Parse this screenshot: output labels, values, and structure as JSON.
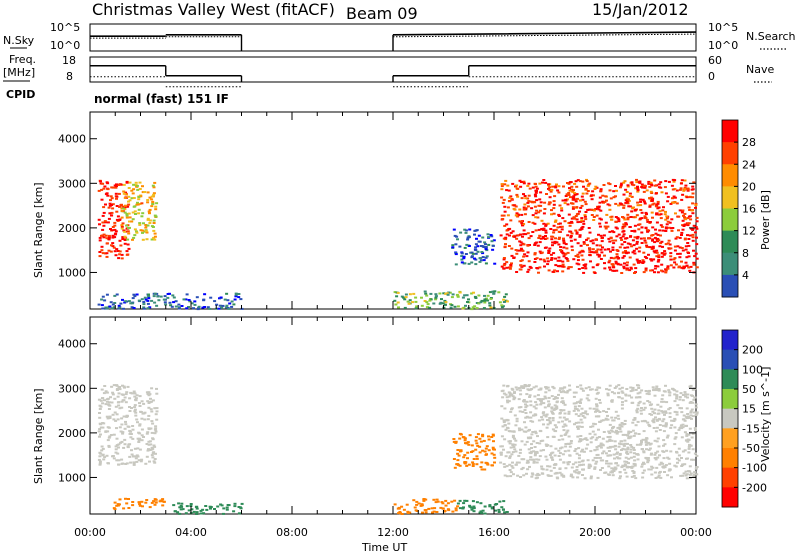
{
  "header": {
    "station": "Christmas Valley West (fitACF)",
    "beam": "Beam 09",
    "date": "15/Jan/2012"
  },
  "left_labels": {
    "nsky": "N.Sky",
    "freq_line1": "Freq.",
    "freq_line2": "[MHz]",
    "cpid": "CPID"
  },
  "right_labels": {
    "nsearch": "N.Search",
    "nave": "Nave"
  },
  "cpid_text": "normal (fast) 151 IF",
  "colors": {
    "power_scale": [
      "#0000ff",
      "#2a4fb5",
      "#3c8e78",
      "#2e8b57",
      "#8ccc3c",
      "#f0c020",
      "#ff8c00",
      "#ff4000",
      "#ff0000"
    ],
    "velocity_scale": [
      "#2222cc",
      "#2a4fb5",
      "#2e8b57",
      "#8ccc3c",
      "#c8c8c0",
      "#ffa020",
      "#ff8000",
      "#ff4000",
      "#ff0000"
    ],
    "ground_scatter": "#c8c8c0"
  },
  "chart_data": [
    {
      "type": "line",
      "panel": "noise",
      "ylabel_left": "N.Sky",
      "ylabel_right": "N.Search",
      "ytick_left": [
        "10^5",
        "10^0"
      ],
      "ytick_right": [
        "10^5",
        "10^0"
      ],
      "x_hours": [
        0,
        3,
        3,
        6,
        6,
        12,
        12,
        24
      ],
      "nsky_level": [
        0.55,
        0.55,
        0.6,
        0.6,
        null,
        null,
        0.6,
        0.7
      ]
    },
    {
      "type": "line",
      "panel": "frequency",
      "ylabel_left": "Freq. [MHz]",
      "ylabel_right": "Nave",
      "yticks_left": [
        "18",
        "8"
      ],
      "yticks_right": [
        "60",
        "0"
      ],
      "freq_segments": [
        {
          "x": [
            0,
            3
          ],
          "mhz": 14.5
        },
        {
          "x": [
            3,
            6
          ],
          "mhz": 10.5
        },
        {
          "x": [
            12,
            15
          ],
          "mhz": 10.5
        },
        {
          "x": [
            15,
            24
          ],
          "mhz": 14.5
        }
      ],
      "cpid": "normal (fast) 151 IF"
    },
    {
      "type": "heatmap",
      "panel": "power",
      "ylabel": "Slant Range [km]",
      "xlabel": "",
      "xlim": [
        0,
        24
      ],
      "ylim": [
        180,
        4600
      ],
      "yticks": [
        1000,
        2000,
        3000,
        4000
      ],
      "colorbar_label": "Power [dB]",
      "colorbar_ticks": [
        4,
        8,
        12,
        16,
        20,
        24,
        28
      ],
      "colorbar_range": [
        0,
        32
      ],
      "regions": [
        {
          "t0": 0.3,
          "t1": 1.5,
          "r0": 1300,
          "r1": 3100,
          "value": 30
        },
        {
          "t0": 1.2,
          "t1": 2.6,
          "r0": 1700,
          "r1": 3050,
          "value": 20
        },
        {
          "t0": 0.3,
          "t1": 6.0,
          "r0": 200,
          "r1": 550,
          "value": 6
        },
        {
          "t0": 12.0,
          "t1": 16.5,
          "r0": 200,
          "r1": 600,
          "value": 14
        },
        {
          "t0": 14.3,
          "t1": 16.0,
          "r0": 1200,
          "r1": 2000,
          "value": 6
        },
        {
          "t0": 16.2,
          "t1": 24.0,
          "r0": 1000,
          "r1": 2100,
          "value": 30
        },
        {
          "t0": 16.2,
          "t1": 24.0,
          "r0": 2100,
          "r1": 3100,
          "value": 28
        }
      ]
    },
    {
      "type": "heatmap",
      "panel": "velocity",
      "ylabel": "Slant Range [km]",
      "xlabel": "Time UT",
      "xlim": [
        0,
        24
      ],
      "ylim": [
        180,
        4600
      ],
      "yticks": [
        1000,
        2000,
        3000,
        4000
      ],
      "xtick_labels": [
        "00:00",
        "04:00",
        "08:00",
        "12:00",
        "16:00",
        "20:00",
        "00:00"
      ],
      "xtick_hours": [
        0,
        4,
        8,
        12,
        16,
        20,
        24
      ],
      "colorbar_label": "Velocity [m s^-1]",
      "colorbar_ticks": [
        "200",
        "100",
        "50",
        "15",
        "-15",
        "-50",
        "-100",
        "-200"
      ],
      "regions": [
        {
          "t0": 0.3,
          "t1": 2.6,
          "r0": 1300,
          "r1": 3100,
          "value": 0
        },
        {
          "t0": 3.0,
          "t1": 6.0,
          "r0": 200,
          "r1": 450,
          "value": 60
        },
        {
          "t0": 0.8,
          "t1": 3.0,
          "r0": 300,
          "r1": 550,
          "value": -60
        },
        {
          "t0": 12.0,
          "t1": 14.5,
          "r0": 200,
          "r1": 550,
          "value": -60
        },
        {
          "t0": 14.5,
          "t1": 16.5,
          "r0": 200,
          "r1": 500,
          "value": 60
        },
        {
          "t0": 14.3,
          "t1": 16.0,
          "r0": 1200,
          "r1": 2000,
          "value": -60
        },
        {
          "t0": 16.2,
          "t1": 24.0,
          "r0": 1000,
          "r1": 3100,
          "value": 0
        }
      ]
    }
  ]
}
